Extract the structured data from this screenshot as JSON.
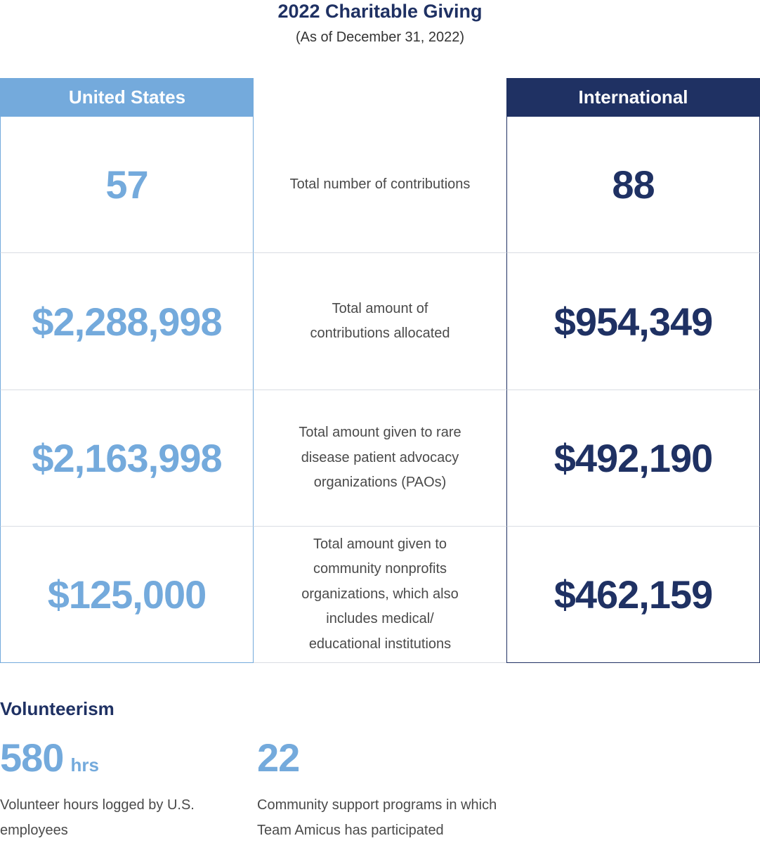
{
  "header": {
    "title": "2022 Charitable Giving",
    "subtitle": "(As of December 31, 2022)"
  },
  "table": {
    "us_header": "United States",
    "intl_header": "International",
    "rows": [
      {
        "us": "57",
        "label": "Total number of contributions",
        "intl": "88"
      },
      {
        "us": "$2,288,998",
        "label": "Total amount of contributions allocated",
        "intl": "$954,349"
      },
      {
        "us": "$2,163,998",
        "label": "Total amount given to rare disease patient advocacy organizations (PAOs)",
        "intl": "$492,190"
      },
      {
        "us": "$125,000",
        "label": "Total amount given to community nonprofits organizations, which also includes medical/ educational institutions",
        "intl": "$462,159"
      }
    ]
  },
  "volunteerism": {
    "heading": "Volunteerism",
    "stats": [
      {
        "value": "580",
        "unit": "hrs",
        "description": "Volunteer hours logged by U.S. employees"
      },
      {
        "value": "22",
        "unit": "",
        "description": "Community support programs in which Team Amicus has participated"
      }
    ]
  },
  "colors": {
    "light_blue": "#74aadc",
    "navy": "#1f3163"
  }
}
